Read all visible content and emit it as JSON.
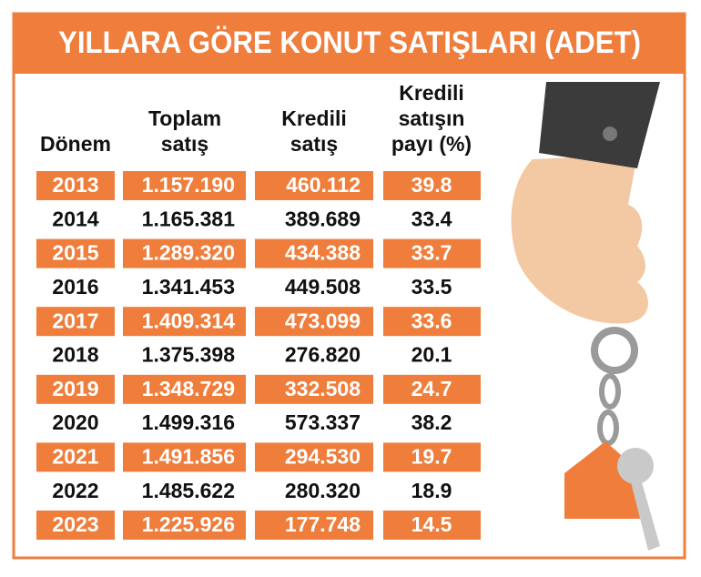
{
  "title": "YILLARA GÖRE KONUT SATIŞLARI (ADET)",
  "table": {
    "headers": [
      [
        "Dönem"
      ],
      [
        "Toplam",
        "satış"
      ],
      [
        "Kredili",
        "satış"
      ],
      [
        "Kredili",
        "satışın",
        "payı (%)"
      ]
    ],
    "rows": [
      [
        "2013",
        "1.157.190",
        "460.112",
        "39.8"
      ],
      [
        "2014",
        "1.165.381",
        "389.689",
        "33.4"
      ],
      [
        "2015",
        "1.289.320",
        "434.388",
        "33.7"
      ],
      [
        "2016",
        "1.341.453",
        "449.508",
        "33.5"
      ],
      [
        "2017",
        "1.409.314",
        "473.099",
        "33.6"
      ],
      [
        "2018",
        "1.375.398",
        "276.820",
        "20.1"
      ],
      [
        "2019",
        "1.348.729",
        "332.508",
        "24.7"
      ],
      [
        "2020",
        "1.499.316",
        "573.337",
        "38.2"
      ],
      [
        "2021",
        "1.491.856",
        "294.530",
        "19.7"
      ],
      [
        "2022",
        "1.485.622",
        "280.320",
        "18.9"
      ],
      [
        "2023",
        "1.225.926",
        "177.748",
        "14.5"
      ]
    ]
  }
}
